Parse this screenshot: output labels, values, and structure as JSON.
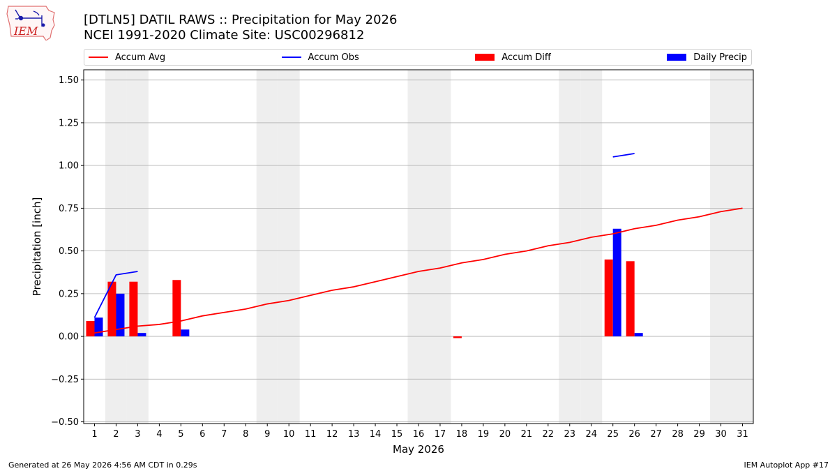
{
  "title": "[DTLN5] DATIL RAWS :: Precipitation for May 2026",
  "subtitle": "NCEI 1991-2020 Climate Site: USC00296812",
  "logo": {
    "text": "IEM"
  },
  "footer": {
    "left": "Generated at 26 May 2026 4:56 AM CDT in 0.29s",
    "right": "IEM Autoplot App #17"
  },
  "colors": {
    "avg": "#ff0000",
    "obs": "#0000ff",
    "diff": "#ff0000",
    "daily": "#0000ff",
    "weekend": "#eeeeee",
    "grid": "#b0b0b0"
  },
  "chart_data": {
    "type": "bar",
    "xlabel": "May 2026",
    "ylabel": "Precipitation [inch]",
    "xlim": [
      0.5,
      31.5
    ],
    "ylim": [
      -0.51,
      1.56
    ],
    "yticks": [
      -0.5,
      -0.25,
      0.0,
      0.25,
      0.5,
      0.75,
      1.0,
      1.25,
      1.5
    ],
    "ytick_labels": [
      "−0.50",
      "−0.25",
      "0.00",
      "0.25",
      "0.50",
      "0.75",
      "1.00",
      "1.25",
      "1.50"
    ],
    "x": [
      1,
      2,
      3,
      4,
      5,
      6,
      7,
      8,
      9,
      10,
      11,
      12,
      13,
      14,
      15,
      16,
      17,
      18,
      19,
      20,
      21,
      22,
      23,
      24,
      25,
      26,
      27,
      28,
      29,
      30,
      31
    ],
    "xtick_labels": [
      "1",
      "2",
      "3",
      "4",
      "5",
      "6",
      "7",
      "8",
      "9",
      "10",
      "11",
      "12",
      "13",
      "14",
      "15",
      "16",
      "17",
      "18",
      "19",
      "20",
      "21",
      "22",
      "23",
      "24",
      "25",
      "26",
      "27",
      "28",
      "29",
      "30",
      "31"
    ],
    "grid": "y",
    "legend_position": "top",
    "shaded_days": [
      2,
      3,
      9,
      10,
      16,
      17,
      23,
      24,
      30,
      31
    ],
    "series": [
      {
        "name": "Accum Avg",
        "kind": "line",
        "x": [
          1,
          2,
          3,
          4,
          5,
          6,
          7,
          8,
          9,
          10,
          11,
          12,
          13,
          14,
          15,
          16,
          17,
          18,
          19,
          20,
          21,
          22,
          23,
          24,
          25,
          26,
          27,
          28,
          29,
          30,
          31
        ],
        "values": [
          0.02,
          0.04,
          0.06,
          0.07,
          0.09,
          0.12,
          0.14,
          0.16,
          0.19,
          0.21,
          0.24,
          0.27,
          0.29,
          0.32,
          0.35,
          0.38,
          0.4,
          0.43,
          0.45,
          0.48,
          0.5,
          0.53,
          0.55,
          0.58,
          0.6,
          0.63,
          0.65,
          0.68,
          0.7,
          0.73,
          0.75
        ]
      },
      {
        "name": "Accum Obs",
        "kind": "line",
        "segments": [
          {
            "x": [
              1,
              2,
              3
            ],
            "values": [
              0.11,
              0.36,
              0.38
            ]
          },
          {
            "x": [
              25,
              26
            ],
            "values": [
              1.05,
              1.07
            ]
          }
        ]
      },
      {
        "name": "Accum Diff",
        "kind": "bar",
        "x": [
          1,
          2,
          3,
          5,
          18,
          25,
          26
        ],
        "values": [
          0.09,
          0.32,
          0.32,
          0.33,
          -0.01,
          0.45,
          0.44
        ]
      },
      {
        "name": "Daily Precip",
        "kind": "bar",
        "x": [
          1,
          2,
          3,
          5,
          25,
          26
        ],
        "values": [
          0.11,
          0.25,
          0.02,
          0.04,
          0.63,
          0.02
        ]
      }
    ]
  }
}
